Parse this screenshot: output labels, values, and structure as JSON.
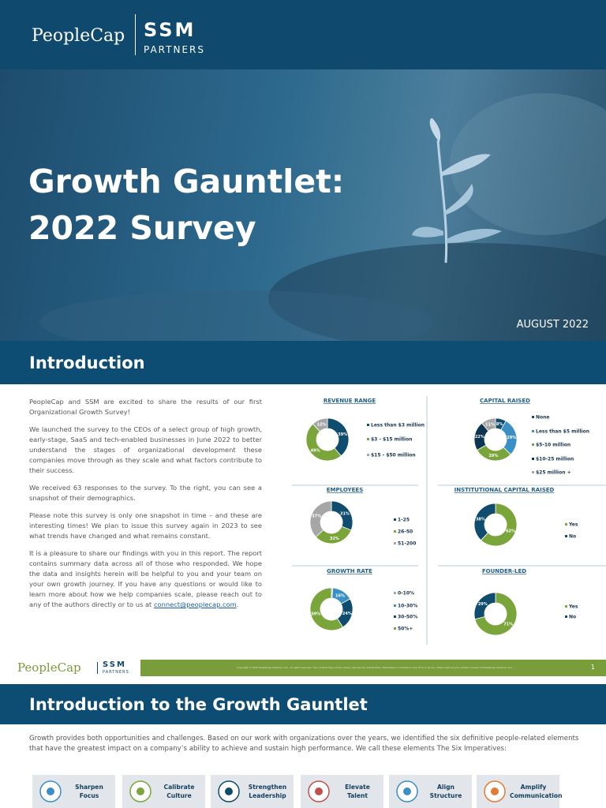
{
  "header": {
    "logo_left": "PeopleCap",
    "logo_right": "SSM",
    "logo_right_sub": "PARTNERS"
  },
  "hero": {
    "title_line1": "Growth Gauntlet:",
    "title_line2": "2022 Survey",
    "date": "AUGUST 2022"
  },
  "intro": {
    "heading": "Introduction",
    "paragraphs": [
      "PeopleCap and SSM are excited to share the results of our first Organizational Growth Survey!",
      "We launched the survey to the CEOs of a select group of high growth, early-stage, SaaS and tech-enabled businesses in June 2022 to better understand the stages of organizational development these companies move through as they scale and what factors contribute to their success.",
      "We received 63 responses to the survey. To the right, you can see a snapshot of their demographics.",
      "Please note this survey is only one snapshot in time – and these are interesting times! We plan to issue this survey again in 2023 to see what trends have changed and what remains constant."
    ],
    "closing": {
      "text": "It is a pleasure to share our findings with you in this report. The report contains summary data across all of those who responded. We hope the data and insights herein will be helpful to you and your team on your own growth journey. If you have any questions or would like to learn more about how we help companies scale, please reach out to any of the authors directly or to us at ",
      "link": "connect@peoplecap.com",
      "end": "."
    }
  },
  "chart_data": [
    {
      "type": "pie",
      "title": "REVENUE RANGE",
      "categories": [
        "Less than $3 million",
        "$3 - $15 million",
        "$15 - $50 million"
      ],
      "values": [
        39,
        49,
        12
      ],
      "value_labels": [
        "39%",
        "49%",
        "12%"
      ],
      "colors": [
        "#0f4c6d",
        "#7aa53a",
        "#a6a6a6"
      ]
    },
    {
      "type": "pie",
      "title": "CAPITAL RAISED",
      "categories": [
        "None",
        "Less than $5 million",
        "$5-10 million",
        "$10-25 million",
        "$25 million +"
      ],
      "values": [
        8,
        29,
        29,
        22,
        11
      ],
      "value_labels": [
        "8%",
        "29%",
        "29%",
        "22%",
        "11%"
      ],
      "colors": [
        "#0f4c6d",
        "#3a8fc4",
        "#7aa53a",
        "#0b3550",
        "#a6a6a6"
      ]
    },
    {
      "type": "pie",
      "title": "EMPLOYEES",
      "categories": [
        "1-25",
        "26-50",
        "51-200"
      ],
      "values": [
        31,
        32,
        37
      ],
      "value_labels": [
        "31%",
        "32%",
        "37%"
      ],
      "colors": [
        "#0f4c6d",
        "#7aa53a",
        "#a6a6a6"
      ]
    },
    {
      "type": "pie",
      "title": "INSTITUTIONAL CAPITAL RAISED",
      "categories": [
        "Yes",
        "No"
      ],
      "values": [
        62,
        38
      ],
      "value_labels": [
        "62%",
        "38%"
      ],
      "colors": [
        "#7aa53a",
        "#0f4c6d"
      ]
    },
    {
      "type": "pie",
      "title": "GROWTH RATE",
      "categories": [
        "0-10%",
        "10-30%",
        "30-50%",
        "50%+"
      ],
      "values": [
        1,
        16,
        24,
        59
      ],
      "value_labels": [
        "1%",
        "16%",
        "24%",
        "59%"
      ],
      "colors": [
        "#a6a6a6",
        "#3a8fc4",
        "#0f4c6d",
        "#7aa53a"
      ]
    },
    {
      "type": "pie",
      "title": "FOUNDER-LED",
      "categories": [
        "Yes",
        "No"
      ],
      "values": [
        71,
        29
      ],
      "value_labels": [
        "71%",
        "29%"
      ],
      "colors": [
        "#7aa53a",
        "#0f4c6d"
      ]
    }
  ],
  "footer": {
    "logo_left": "PeopleCap",
    "logo_right": "SSM",
    "logo_right_sub": "PARTNERS",
    "copyright": "Copyright © 2022 PeopleCap Advisors, LLC. All rights reserved. This content may not be copied, reproduced, transmitted, distributed or modified in any form or by any means without prior written consent of PeopleCap Advisors, LLC.",
    "page": "1"
  },
  "gauntlet": {
    "heading": "Introduction to the Growth Gauntlet",
    "text": "Growth provides both opportunities and challenges. Based on our work with organizations over the years, we identified the six definitive people-related elements that have the greatest impact on a company’s ability to achieve and sustain high performance. We call these elements The Six Imperatives:",
    "imperatives": [
      "Sharpen Focus",
      "Calibrate Culture",
      "Strengthen Leadership",
      "Elevate Talent",
      "Align Structure",
      "Amplify Communication"
    ]
  }
}
